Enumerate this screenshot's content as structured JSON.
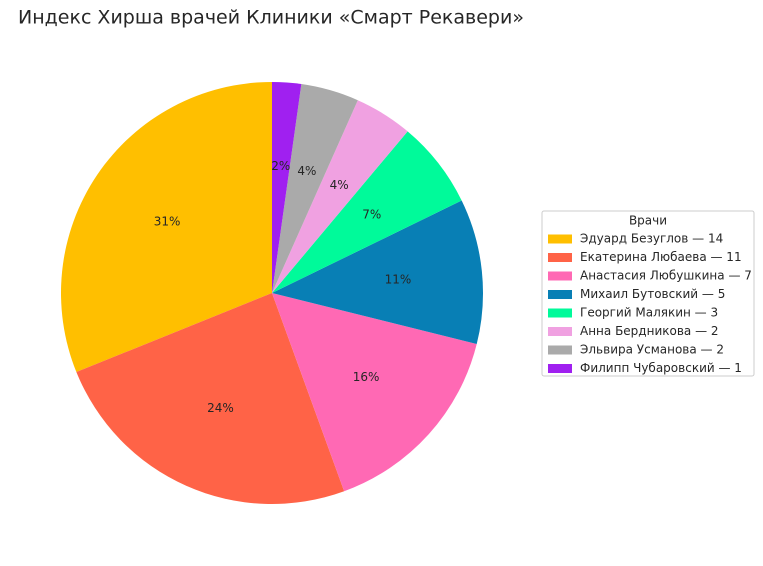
{
  "chart_data": {
    "type": "pie",
    "title": "Индекс Хирша врачей Клиники «Смарт Рекавери»",
    "legend_title": "Врачи",
    "categories": [
      "Эдуард Безуглов — 14",
      "Екатерина Любаева — 11",
      "Анастасия Любушкина — 7",
      "Михаил Бутовский — 5",
      "Георгий Малякин — 3",
      "Анна Бердникова — 2",
      "Эльвира Усманова — 2",
      "Филипп Чубаровский — 1"
    ],
    "values": [
      14,
      11,
      7,
      5,
      3,
      2,
      2,
      1
    ],
    "percent_labels": [
      "31%",
      "24%",
      "16%",
      "11%",
      "7%",
      "4%",
      "4%",
      "2%"
    ],
    "colors": [
      "#ffbf00",
      "#ff6347",
      "#ff69b4",
      "#087fb5",
      "#00fa9a",
      "#f0a1e1",
      "#aaaaaa",
      "#a020f0"
    ],
    "legend": "right"
  }
}
